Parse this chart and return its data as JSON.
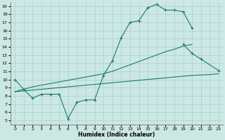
{
  "xlabel": "Humidex (Indice chaleur)",
  "xlim": [
    -0.5,
    23.5
  ],
  "ylim": [
    4.5,
    19.5
  ],
  "xticks": [
    0,
    1,
    2,
    3,
    4,
    5,
    6,
    7,
    8,
    9,
    10,
    11,
    12,
    13,
    14,
    15,
    16,
    17,
    18,
    19,
    20,
    21,
    22,
    23
  ],
  "yticks": [
    5,
    6,
    7,
    8,
    9,
    10,
    11,
    12,
    13,
    14,
    15,
    16,
    17,
    18,
    19
  ],
  "bg_color": "#cce8e4",
  "grid_color": "#aacfcb",
  "line_color": "#1a7a6e",
  "line1_x": [
    0,
    1,
    2,
    3,
    4,
    5,
    6,
    7,
    8,
    9,
    10,
    11,
    12,
    13,
    14,
    15,
    16,
    17,
    18,
    19,
    20
  ],
  "line1_y": [
    10.0,
    8.8,
    7.7,
    8.2,
    8.2,
    8.2,
    5.2,
    7.2,
    7.5,
    7.5,
    10.5,
    12.3,
    15.1,
    17.0,
    17.2,
    18.8,
    19.2,
    18.5,
    18.5,
    18.3,
    16.3
  ],
  "line2_x": [
    19,
    20,
    21,
    23
  ],
  "line2_y": [
    14.3,
    13.2,
    12.5,
    11.1
  ],
  "line3_x": [
    0,
    1,
    2,
    3,
    4,
    5,
    6,
    7,
    8,
    9,
    10,
    11,
    12,
    13,
    14,
    15,
    16,
    17,
    18,
    19,
    20,
    21,
    22,
    23
  ],
  "line3_y": [
    8.5,
    8.6,
    8.7,
    8.8,
    8.9,
    9.0,
    9.1,
    9.2,
    9.3,
    9.4,
    9.5,
    9.6,
    9.7,
    9.8,
    9.9,
    10.0,
    10.1,
    10.2,
    10.3,
    10.4,
    10.5,
    10.55,
    10.6,
    10.7
  ],
  "line4_x": [
    0,
    1,
    2,
    3,
    4,
    5,
    6,
    7,
    8,
    9,
    10,
    11,
    12,
    13,
    14,
    15,
    16,
    17,
    18,
    19,
    20
  ],
  "line4_y": [
    8.5,
    8.8,
    9.1,
    9.3,
    9.5,
    9.7,
    9.9,
    10.1,
    10.3,
    10.5,
    10.7,
    11.0,
    11.4,
    11.8,
    12.2,
    12.6,
    13.0,
    13.4,
    13.7,
    14.1,
    14.3
  ]
}
